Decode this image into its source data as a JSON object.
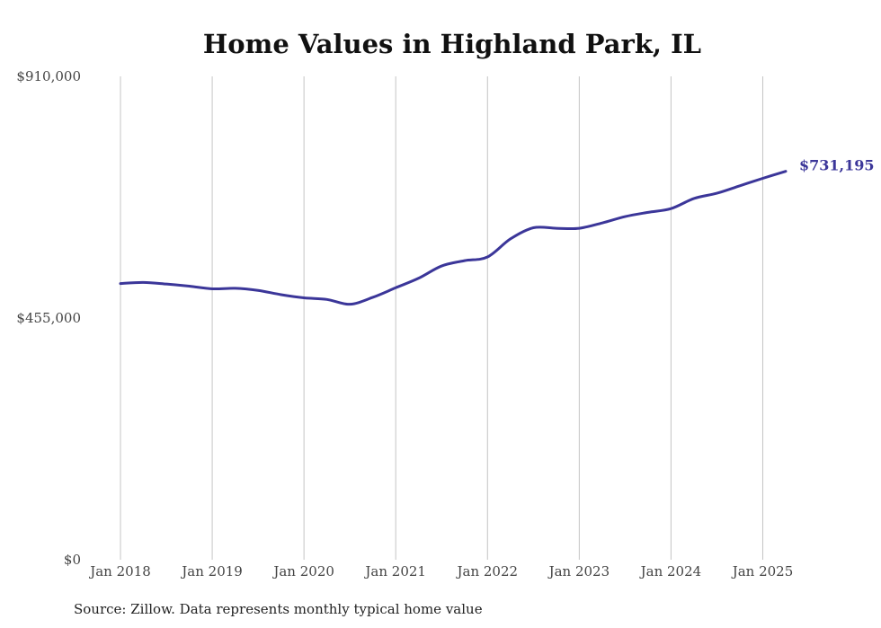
{
  "chart_data": {
    "type": "line",
    "title": "Home Values in Highland Park, IL",
    "source": "Source: Zillow. Data represents monthly typical home value",
    "xlim": [
      "2018-01",
      "2025-04"
    ],
    "ylim": [
      0,
      910000
    ],
    "y_ticks": [
      {
        "value": 0,
        "label": "$0"
      },
      {
        "value": 455000,
        "label": "$455,000"
      },
      {
        "value": 910000,
        "label": "$910,000"
      }
    ],
    "x_ticks": [
      {
        "value": "2018-01",
        "label": "Jan 2018"
      },
      {
        "value": "2019-01",
        "label": "Jan 2019"
      },
      {
        "value": "2020-01",
        "label": "Jan 2020"
      },
      {
        "value": "2021-01",
        "label": "Jan 2021"
      },
      {
        "value": "2022-01",
        "label": "Jan 2022"
      },
      {
        "value": "2023-01",
        "label": "Jan 2023"
      },
      {
        "value": "2024-01",
        "label": "Jan 2024"
      },
      {
        "value": "2025-01",
        "label": "Jan 2025"
      }
    ],
    "grid": {
      "vertical": true,
      "horizontal": false
    },
    "series": [
      {
        "color": "#3b3699",
        "end_label": "$731,195",
        "points": [
          {
            "x": "2018-01",
            "y": 520000
          },
          {
            "x": "2018-04",
            "y": 522000
          },
          {
            "x": "2018-07",
            "y": 519000
          },
          {
            "x": "2018-10",
            "y": 515000
          },
          {
            "x": "2019-01",
            "y": 510000
          },
          {
            "x": "2019-04",
            "y": 511000
          },
          {
            "x": "2019-07",
            "y": 507000
          },
          {
            "x": "2019-10",
            "y": 499000
          },
          {
            "x": "2020-01",
            "y": 493000
          },
          {
            "x": "2020-04",
            "y": 490000
          },
          {
            "x": "2020-07",
            "y": 481000
          },
          {
            "x": "2020-10",
            "y": 494000
          },
          {
            "x": "2021-01",
            "y": 512000
          },
          {
            "x": "2021-04",
            "y": 530000
          },
          {
            "x": "2021-07",
            "y": 553000
          },
          {
            "x": "2021-10",
            "y": 563000
          },
          {
            "x": "2022-01",
            "y": 570000
          },
          {
            "x": "2022-04",
            "y": 604000
          },
          {
            "x": "2022-07",
            "y": 625000
          },
          {
            "x": "2022-10",
            "y": 624000
          },
          {
            "x": "2023-01",
            "y": 624000
          },
          {
            "x": "2023-04",
            "y": 634000
          },
          {
            "x": "2023-07",
            "y": 646000
          },
          {
            "x": "2023-10",
            "y": 654000
          },
          {
            "x": "2024-01",
            "y": 661000
          },
          {
            "x": "2024-04",
            "y": 680000
          },
          {
            "x": "2024-07",
            "y": 690000
          },
          {
            "x": "2024-10",
            "y": 704000
          },
          {
            "x": "2025-01",
            "y": 718000
          },
          {
            "x": "2025-04",
            "y": 731195
          }
        ]
      }
    ]
  }
}
